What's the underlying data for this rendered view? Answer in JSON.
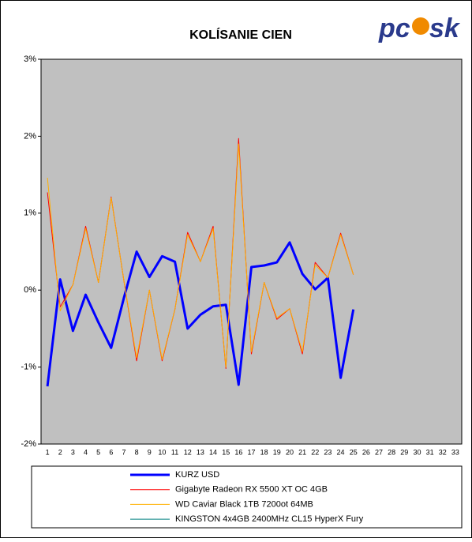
{
  "logo": {
    "left": "pc",
    "right": "sk"
  },
  "chart_data": {
    "type": "line",
    "title": "KOLÍSANIE CIEN",
    "categories": [
      1,
      2,
      3,
      4,
      5,
      6,
      7,
      8,
      9,
      10,
      11,
      12,
      13,
      14,
      15,
      16,
      17,
      18,
      19,
      20,
      21,
      22,
      23,
      24,
      25,
      26,
      27,
      28,
      29,
      30,
      31,
      32,
      33
    ],
    "ylim": [
      -2,
      3
    ],
    "yticks": [
      {
        "value": -2,
        "label": "-2%"
      },
      {
        "value": -1,
        "label": "-1%"
      },
      {
        "value": 0,
        "label": "0%"
      },
      {
        "value": 1,
        "label": "1%"
      },
      {
        "value": 2,
        "label": "2%"
      },
      {
        "value": 3,
        "label": "3%"
      }
    ],
    "grid": false,
    "legend": "bottom",
    "series": [
      {
        "name": "KURZ USD",
        "color": "#0000ff",
        "width": 3,
        "values": [
          -1.25,
          0.14,
          -0.53,
          -0.06,
          -0.42,
          -0.75,
          -0.1,
          0.5,
          0.17,
          0.44,
          0.37,
          -0.5,
          -0.32,
          -0.21,
          -0.19,
          -1.23,
          0.3,
          0.32,
          0.36,
          0.62,
          0.21,
          0.01,
          0.16,
          -1.14,
          -0.25,
          null,
          null,
          null,
          null,
          null,
          null,
          null,
          null
        ]
      },
      {
        "name": "Gigabyte Radeon RX 5500 XT OC 4GB",
        "color": "#ff0000",
        "width": 1,
        "values": [
          1.27,
          -0.22,
          0.07,
          0.83,
          0.1,
          1.21,
          0.12,
          -0.92,
          0.0,
          -0.92,
          -0.25,
          0.75,
          0.37,
          0.83,
          -1.02,
          1.97,
          -0.83,
          0.1,
          -0.38,
          -0.24,
          -0.83,
          0.36,
          0.16,
          0.74,
          0.2,
          null,
          null,
          null,
          null,
          null,
          null,
          null,
          null
        ]
      },
      {
        "name": "WD Caviar Black 1TB 7200ot 64MB",
        "color": "#ffb000",
        "width": 1,
        "values": [
          1.46,
          -0.27,
          0.07,
          0.8,
          0.1,
          1.2,
          0.12,
          -0.88,
          0.0,
          -0.9,
          -0.25,
          0.72,
          0.37,
          0.8,
          -1.0,
          1.9,
          -0.8,
          0.1,
          -0.36,
          -0.24,
          -0.8,
          0.33,
          0.16,
          0.72,
          0.2,
          null,
          null,
          null,
          null,
          null,
          null,
          null,
          null
        ]
      },
      {
        "name": "KINGSTON 4x4GB 2400MHz CL15 HyperX Fury",
        "color": "#008080",
        "width": 1,
        "values": [
          null,
          null,
          null,
          null,
          null,
          null,
          null,
          null,
          null,
          null,
          null,
          null,
          null,
          null,
          null,
          null,
          null,
          null,
          null,
          null,
          null,
          null,
          null,
          null,
          null,
          null,
          null,
          null,
          null,
          null,
          null,
          null,
          null
        ]
      }
    ]
  }
}
